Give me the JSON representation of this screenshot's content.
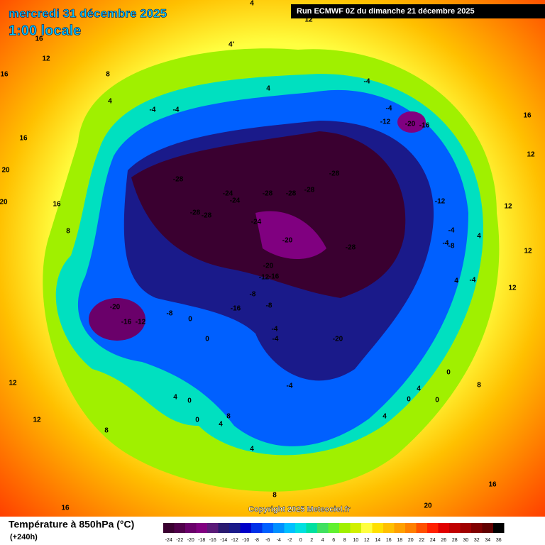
{
  "header": {
    "title": "mercredi 31 décembre 2025",
    "subtitle": "1:00 locale",
    "run": "Run ECMWF 0Z du dimanche 21 décembre 2025"
  },
  "map": {
    "labels": [
      "12",
      "16",
      "12",
      "16",
      "8",
      "4'",
      "4",
      "4",
      "4",
      "-4",
      "-4",
      "-4",
      "-4",
      "-12",
      "-20",
      "-16",
      "16",
      "12",
      "16",
      "20",
      "20",
      "16",
      "8",
      "-28",
      "-24",
      "-24",
      "-28",
      "-28",
      "-28",
      "-28",
      "-28",
      "-28",
      "-24",
      "-20",
      "-28",
      "-12",
      "12",
      "-4",
      "-4",
      "-8",
      "12",
      "4",
      "-20",
      "-12",
      "-16",
      "-8",
      "-8",
      "-20",
      "-16",
      "-12",
      "-8",
      "-16",
      "0",
      "-4",
      "-4",
      "0",
      "-20",
      "-4",
      "4",
      "12",
      "0",
      "8",
      "-4",
      "12",
      "12",
      "4",
      "0",
      "0",
      "4",
      "8",
      "4",
      "0",
      "4",
      "0",
      "4",
      "8",
      "8",
      "16",
      "16",
      "20"
    ]
  },
  "copyright": "Copyright 2025 Meteociel.fr",
  "legend": {
    "title": "Température à 850hPa (°C)",
    "lead": "(+240h)",
    "ticks": [
      -24,
      -22,
      -20,
      -18,
      -16,
      -14,
      -12,
      -10,
      -8,
      -6,
      -4,
      -2,
      0,
      2,
      4,
      6,
      8,
      10,
      12,
      14,
      16,
      18,
      20,
      22,
      24,
      26,
      28,
      30,
      32,
      34,
      36
    ],
    "colors": [
      "#3a0030",
      "#50004a",
      "#6a006a",
      "#800080",
      "#5a1a78",
      "#2a1a70",
      "#1a1a8a",
      "#0000c8",
      "#0030e8",
      "#0060ff",
      "#0090ff",
      "#00c0ff",
      "#00e0e0",
      "#00e0a0",
      "#40e060",
      "#60f030",
      "#a0f000",
      "#d0f000",
      "#ffff40",
      "#ffe000",
      "#ffc000",
      "#ffa000",
      "#ff8000",
      "#ff5000",
      "#ff2000",
      "#e00000",
      "#c00000",
      "#a00000",
      "#800000",
      "#600000",
      "#000000"
    ]
  }
}
